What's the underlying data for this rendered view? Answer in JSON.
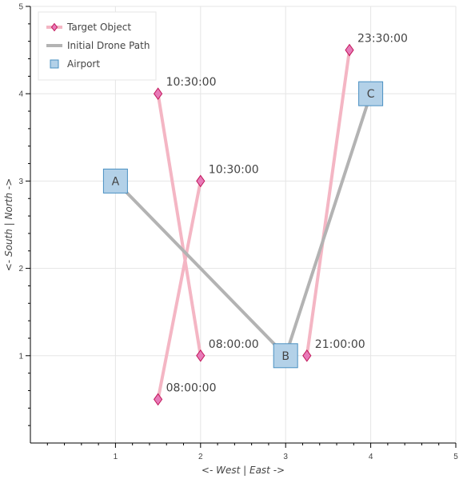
{
  "chart_data": {
    "type": "line",
    "xlabel": "<- West  |  East ->",
    "ylabel": "<- South  |  North ->",
    "xlim": [
      0,
      5
    ],
    "ylim": [
      0,
      5
    ],
    "x_ticks": [
      1,
      2,
      3,
      4,
      5
    ],
    "y_ticks": [
      1,
      2,
      3,
      4,
      5
    ],
    "grid": true,
    "legend_position": "top-left",
    "legend": [
      {
        "label": "Target Object",
        "kind": "target"
      },
      {
        "label": "Initial Drone Path",
        "kind": "path"
      },
      {
        "label": "Airport",
        "kind": "airport"
      }
    ],
    "colors": {
      "target_line": "#f4b6c4",
      "target_marker_fill": "#e87ab8",
      "target_marker_stroke": "#c2185b",
      "drone_path": "#b3b3b3",
      "airport_fill": "#b3d1e8",
      "airport_stroke": "#4a90c2",
      "grid": "#e5e5e5"
    },
    "target_tracks": [
      {
        "points": [
          {
            "x": 1.5,
            "y": 4,
            "label": "10:30:00"
          },
          {
            "x": 2,
            "y": 1,
            "label": "08:00:00"
          }
        ]
      },
      {
        "points": [
          {
            "x": 2,
            "y": 3,
            "label": "10:30:00"
          },
          {
            "x": 1.5,
            "y": 0.5,
            "label": "08:00:00"
          }
        ]
      },
      {
        "points": [
          {
            "x": 3.25,
            "y": 1,
            "label": "21:00:00"
          },
          {
            "x": 3.75,
            "y": 4.5,
            "label": "23:30:00"
          }
        ]
      }
    ],
    "drone_path": [
      {
        "x": 1,
        "y": 3
      },
      {
        "x": 3,
        "y": 1
      },
      {
        "x": 4,
        "y": 4
      }
    ],
    "airports": [
      {
        "name": "A",
        "x": 1,
        "y": 3
      },
      {
        "name": "B",
        "x": 3,
        "y": 1
      },
      {
        "name": "C",
        "x": 4,
        "y": 4
      }
    ]
  }
}
